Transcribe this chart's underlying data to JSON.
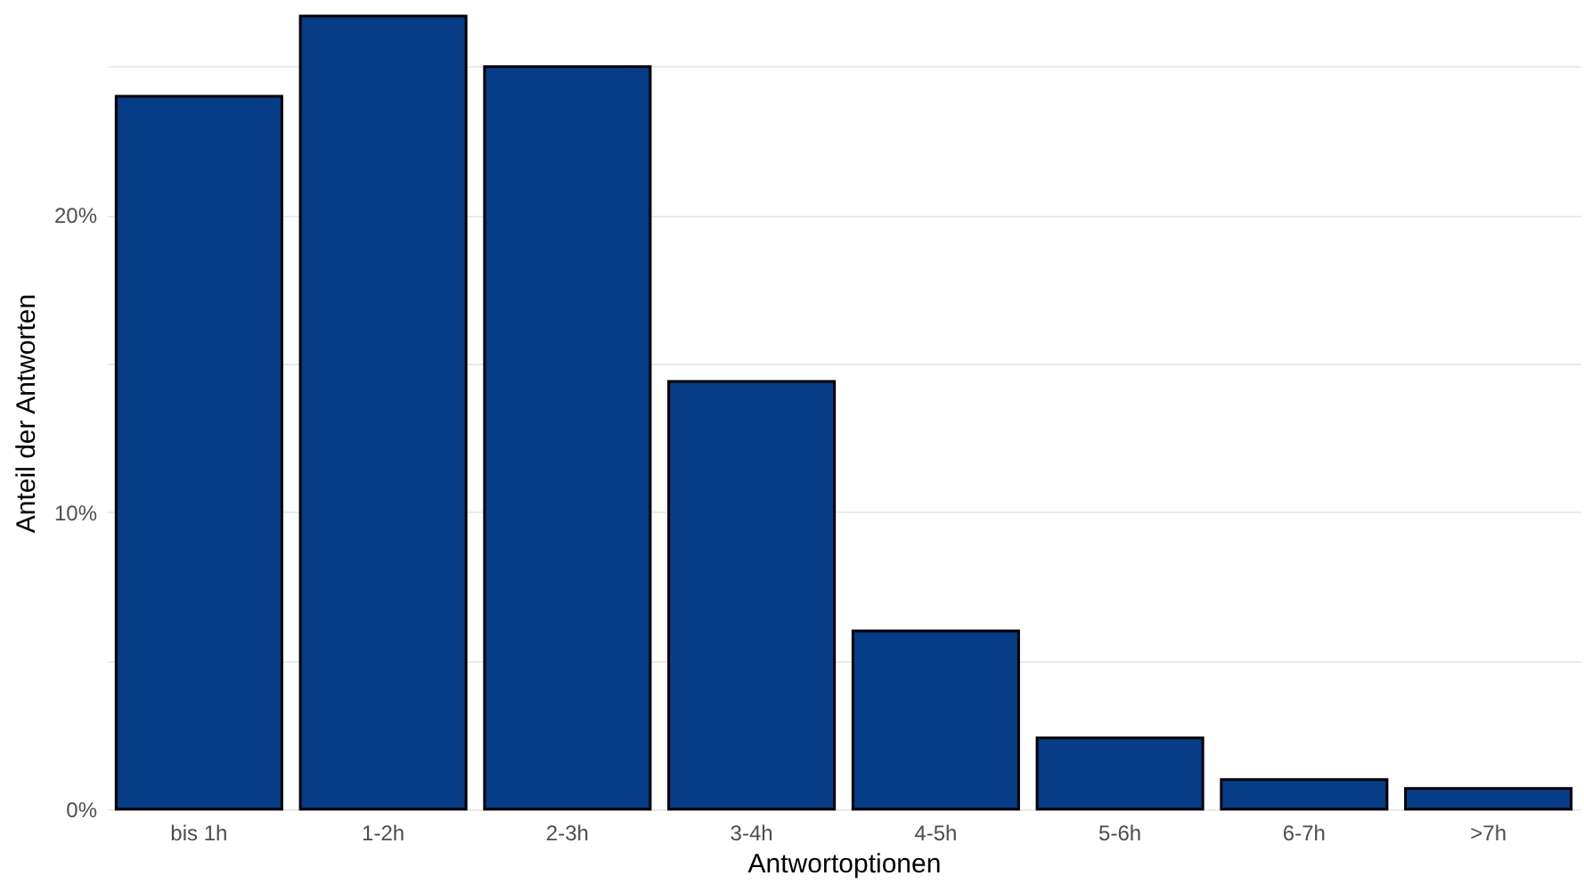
{
  "chart_data": {
    "type": "bar",
    "xlabel": "Antwortoptionen",
    "ylabel": "Anteil der Antworten",
    "categories": [
      "bis 1h",
      "1-2h",
      "2-3h",
      "3-4h",
      "4-5h",
      "5-6h",
      "6-7h",
      ">7h"
    ],
    "values": [
      24.0,
      26.7,
      25.0,
      14.4,
      6.0,
      2.4,
      1.0,
      0.7
    ],
    "color": "#073c87",
    "ylim": [
      0,
      26.7
    ],
    "yticks": [
      {
        "value": 0,
        "label": "0%"
      },
      {
        "value": 5,
        "label": null
      },
      {
        "value": 10,
        "label": "10%"
      },
      {
        "value": 15,
        "label": null
      },
      {
        "value": 20,
        "label": "20%"
      },
      {
        "value": 25,
        "label": null
      }
    ],
    "grid": "y"
  }
}
